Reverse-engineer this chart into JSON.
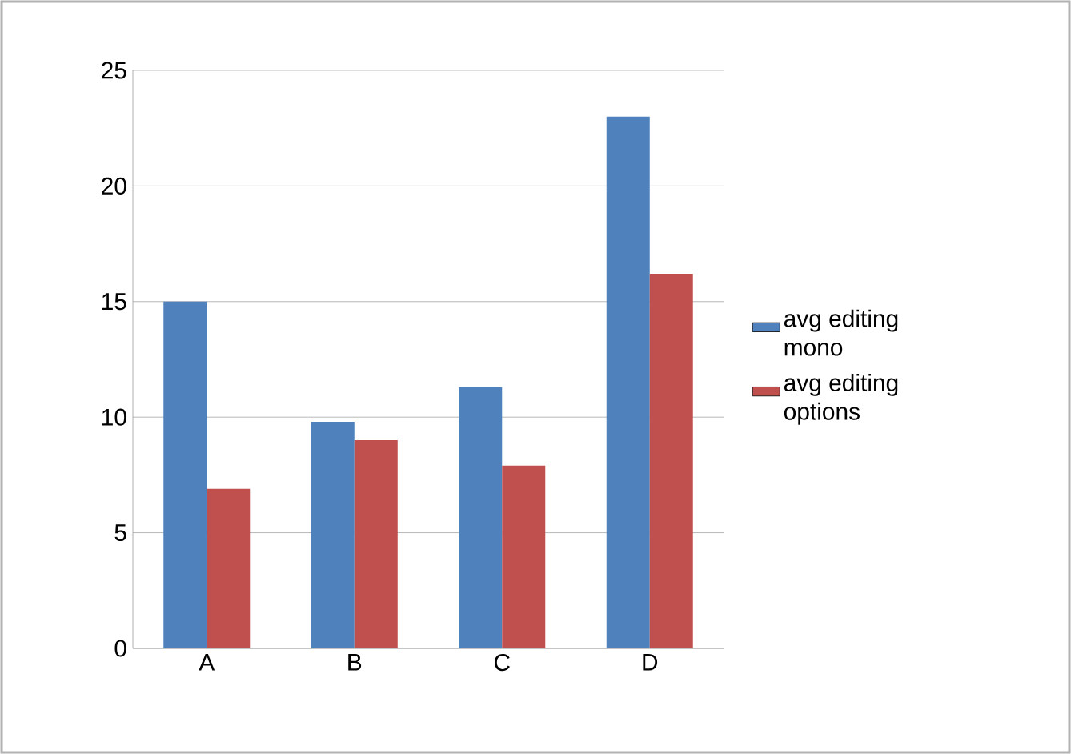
{
  "chart_data": {
    "type": "bar",
    "categories": [
      "A",
      "B",
      "C",
      "D"
    ],
    "series": [
      {
        "name": "avg editing mono",
        "color": "#4f81bd",
        "values": [
          15.0,
          9.8,
          11.3,
          23.0
        ]
      },
      {
        "name": "avg editing options",
        "color": "#c0504d",
        "values": [
          6.9,
          9.0,
          7.9,
          16.2
        ]
      }
    ],
    "ylim": [
      0,
      25
    ],
    "yticks": [
      0,
      5,
      10,
      15,
      20,
      25
    ],
    "grid": "y",
    "legend": "right"
  }
}
